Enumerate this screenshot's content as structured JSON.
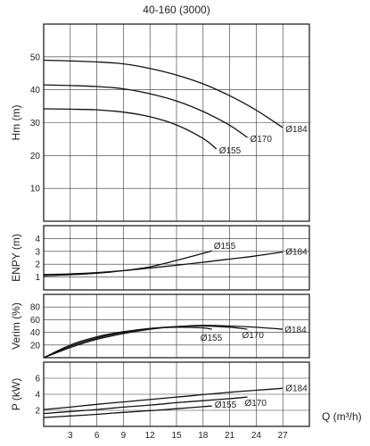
{
  "chart_data": {
    "type": "line",
    "title": "40-160 (3000)",
    "xlabel": "Q (m³/h)",
    "xlim": [
      0,
      30
    ],
    "x_ticks": [
      "3",
      "6",
      "9",
      "12",
      "15",
      "18",
      "21",
      "24",
      "27"
    ],
    "grid": true,
    "panels": [
      {
        "ylabel": "Hm (m)",
        "ylim": [
          0,
          60
        ],
        "y_ticks": [
          "10",
          "20",
          "30",
          "40",
          "50"
        ],
        "series": [
          {
            "name": "Ø184",
            "x": [
              0,
              3,
              6,
              9,
              12,
              15,
              18,
              21,
              24,
              27
            ],
            "y": [
              49,
              48.8,
              48.5,
              47.9,
              46.5,
              44.5,
              41.8,
              38.2,
              33.8,
              28.5
            ]
          },
          {
            "name": "Ø170",
            "x": [
              0,
              3,
              6,
              9,
              12,
              15,
              18,
              21,
              23
            ],
            "y": [
              41.5,
              41.3,
              41,
              40.3,
              38.8,
              36.6,
              33.4,
              29.2,
              25.5
            ]
          },
          {
            "name": "Ø155",
            "x": [
              0,
              3,
              6,
              9,
              12,
              15,
              18,
              19.5
            ],
            "y": [
              34.2,
              34.1,
              33.9,
              33.2,
              31.8,
              29.3,
              25.2,
              22
            ]
          }
        ]
      },
      {
        "ylabel": "ENPY (m)",
        "ylim": [
          0,
          5
        ],
        "y_ticks": [
          "1",
          "2",
          "3",
          "4"
        ],
        "series": [
          {
            "name": "Ø155",
            "x": [
              0,
              3,
              6,
              9,
              12,
              15,
              18,
              19
            ],
            "y": [
              1.1,
              1.18,
              1.3,
              1.5,
              1.8,
              2.3,
              2.85,
              3.05
            ]
          },
          {
            "name": "Ø184",
            "x": [
              0,
              3,
              6,
              9,
              12,
              15,
              18,
              21,
              24,
              27
            ],
            "y": [
              1.2,
              1.25,
              1.35,
              1.5,
              1.7,
              1.92,
              2.15,
              2.4,
              2.65,
              2.95
            ]
          }
        ]
      },
      {
        "ylabel": "Verim (%)",
        "ylim": [
          0,
          100
        ],
        "y_ticks": [
          "20",
          "40",
          "60",
          "80"
        ],
        "series": [
          {
            "name": "Ø155",
            "x": [
              0,
              3,
              6,
              9,
              12,
              15,
              18,
              19
            ],
            "y": [
              0,
              20,
              33,
              41,
              46,
              48,
              47,
              45
            ]
          },
          {
            "name": "Ø170",
            "x": [
              0,
              3,
              6,
              9,
              12,
              15,
              18,
              21,
              23
            ],
            "y": [
              0,
              18,
              31,
              40,
              46,
              49,
              50,
              48,
              45
            ]
          },
          {
            "name": "Ø184",
            "x": [
              0,
              3,
              6,
              9,
              12,
              15,
              18,
              21,
              24,
              27
            ],
            "y": [
              0,
              16,
              29,
              38,
              45,
              49,
              51,
              50,
              48,
              45
            ]
          }
        ]
      },
      {
        "ylabel": "P (kW)",
        "ylim": [
          0,
          8
        ],
        "y_ticks": [
          "2",
          "4",
          "6"
        ],
        "series": [
          {
            "name": "Ø184",
            "x": [
              0,
              3,
              6,
              9,
              12,
              15,
              18,
              21,
              24,
              27
            ],
            "y": [
              2.1,
              2.4,
              2.75,
              3.05,
              3.35,
              3.65,
              3.95,
              4.25,
              4.5,
              4.75
            ]
          },
          {
            "name": "Ø170",
            "x": [
              0,
              3,
              6,
              9,
              12,
              15,
              18,
              21,
              23
            ],
            "y": [
              1.6,
              1.85,
              2.1,
              2.4,
              2.65,
              2.95,
              3.2,
              3.45,
              3.65
            ]
          },
          {
            "name": "Ø155",
            "x": [
              0,
              3,
              6,
              9,
              12,
              15,
              18,
              19
            ],
            "y": [
              1.1,
              1.3,
              1.5,
              1.75,
              1.95,
              2.2,
              2.45,
              2.55
            ]
          }
        ]
      }
    ]
  }
}
